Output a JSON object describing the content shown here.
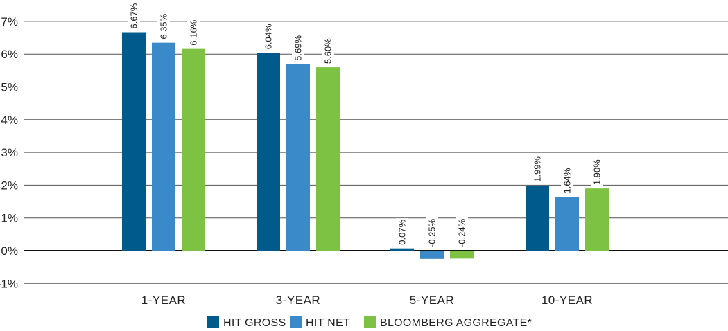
{
  "chart_data": {
    "type": "bar",
    "categories": [
      "1-YEAR",
      "3-YEAR",
      "5-YEAR",
      "10-YEAR"
    ],
    "series": [
      {
        "name": "HIT GROSS",
        "color": "#005a8c",
        "values": [
          6.67,
          6.04,
          0.07,
          1.99
        ],
        "labels": [
          "6.67%",
          "6.04%",
          "0.07%",
          "1.99%"
        ]
      },
      {
        "name": "HIT NET",
        "color": "#3a8ac9",
        "values": [
          6.35,
          5.69,
          -0.25,
          1.64
        ],
        "labels": [
          "6.35%",
          "5.69%",
          "-0.25%",
          "1.64%"
        ]
      },
      {
        "name": "BLOOMBERG AGGREGATE*",
        "color": "#7dc242",
        "values": [
          6.16,
          5.6,
          -0.24,
          1.9
        ],
        "labels": [
          "6.16%",
          "5.60%",
          "-0.24%",
          "1.90%"
        ]
      }
    ],
    "yticks": [
      7,
      6,
      5,
      4,
      3,
      2,
      1,
      0,
      -1
    ],
    "ytick_labels": [
      "7%",
      "6%",
      "5%",
      "4%",
      "3%",
      "2%",
      "1%",
      "0%",
      "-1%"
    ],
    "ylim": [
      -1,
      7
    ],
    "grid": true,
    "legend_position": "bottom-center"
  }
}
